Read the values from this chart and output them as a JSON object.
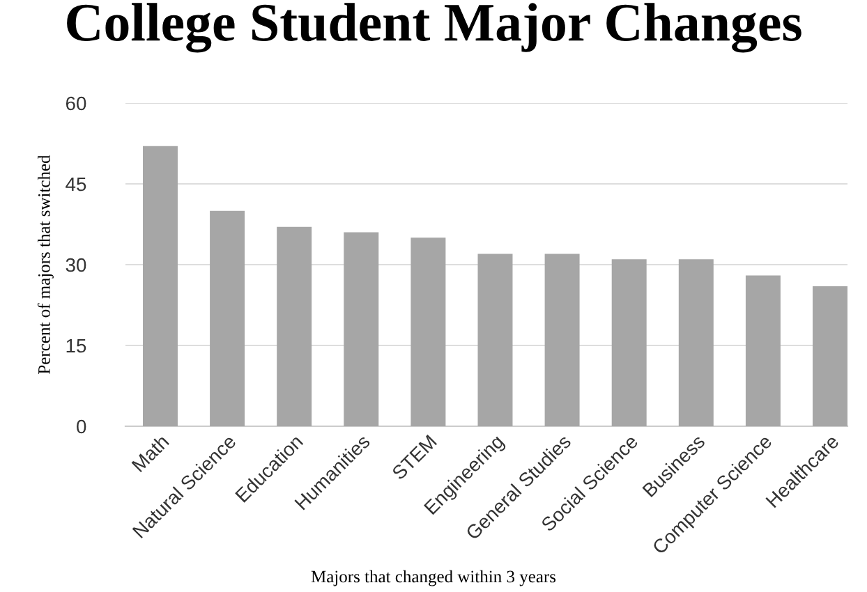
{
  "chart_data": {
    "type": "bar",
    "title": "College Student Major Changes",
    "xlabel": "Majors that changed within 3 years",
    "ylabel": "Percent of majors that switched",
    "categories": [
      "Math",
      "Natural Science",
      "Education",
      "Humanities",
      "STEM",
      "Engineering",
      "General Studies",
      "Social Science",
      "Business",
      "Computer Science",
      "Healthcare"
    ],
    "values": [
      52,
      40,
      37,
      36,
      35,
      32,
      32,
      31,
      31,
      28,
      26
    ],
    "color": "#a6a6a6",
    "ylim": [
      0,
      60
    ],
    "yticks": [
      0,
      15,
      30,
      45,
      60
    ],
    "grid": "y"
  }
}
